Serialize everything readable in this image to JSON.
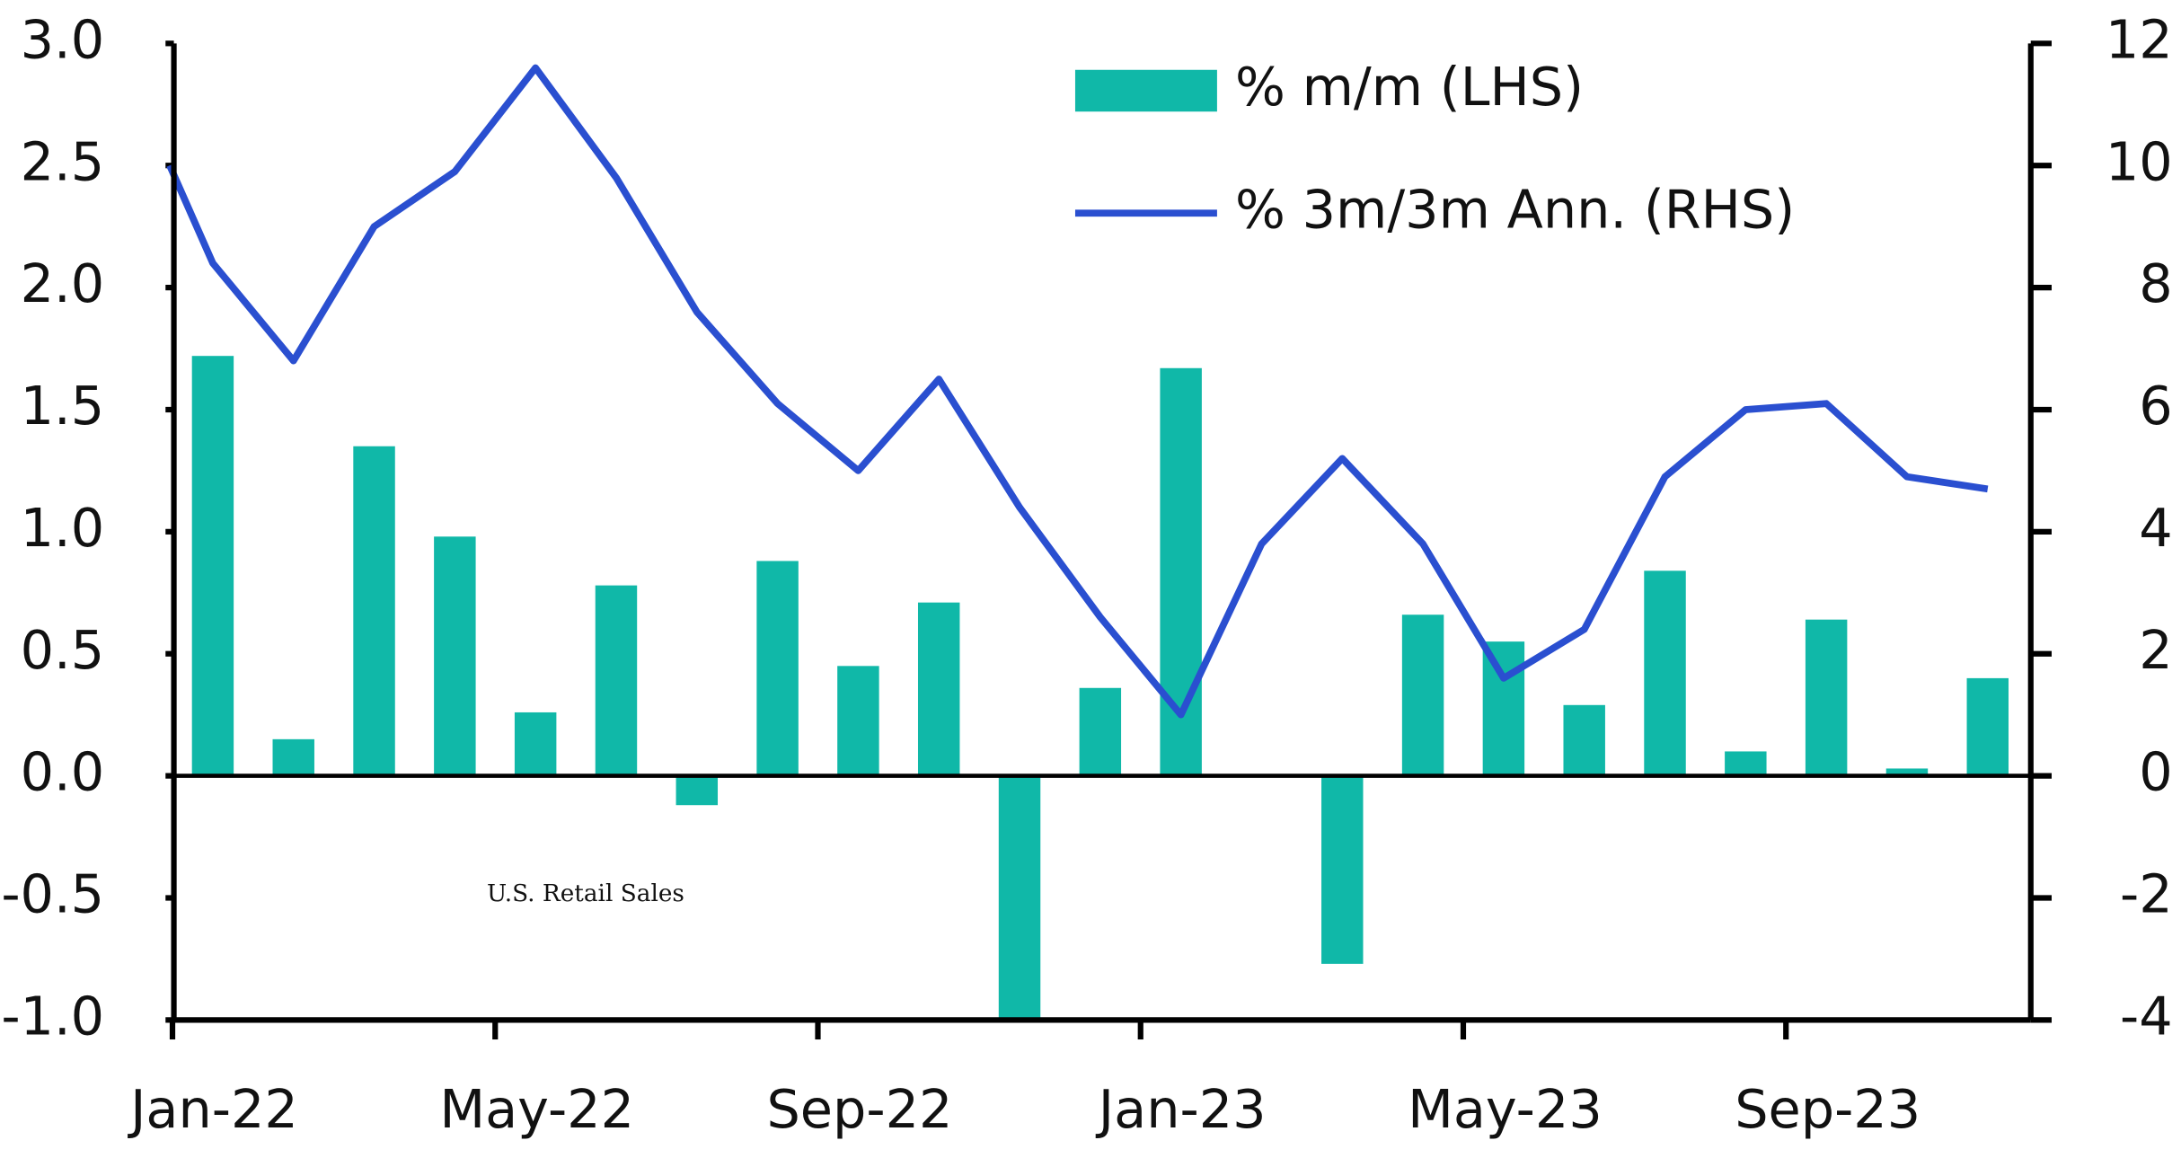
{
  "chart_data": {
    "type": "bar-line",
    "title": "U.S. Retail Sales",
    "categories": [
      null,
      "Jan-22",
      null,
      null,
      null,
      "May-22",
      null,
      null,
      null,
      "Sep-22",
      null,
      null,
      null,
      "Jan-23",
      null,
      null,
      null,
      "May-23",
      null,
      null,
      null,
      "Sep-23",
      null,
      null
    ],
    "series": [
      {
        "name": "% m/m (LHS)",
        "type": "bar",
        "color": "#10b8a8",
        "axis": "y",
        "values": [
          null,
          1.72,
          0.15,
          1.35,
          0.98,
          0.26,
          0.78,
          -0.12,
          0.88,
          0.45,
          0.71,
          -1.0,
          0.36,
          1.67,
          0,
          -0.77,
          0.66,
          0.55,
          0.29,
          0.84,
          0.1,
          0.64,
          0.03,
          0.4
        ]
      },
      {
        "name": "% 3m/3m Ann. (RHS)",
        "type": "line",
        "color": "#2a4fd0",
        "axis": "y2",
        "values": [
          10,
          8.4,
          6.8,
          9,
          9.9,
          11.6,
          9.8,
          7.6,
          6.1,
          5,
          6.5,
          4.4,
          2.6,
          1.0,
          3.8,
          5.2,
          3.8,
          1.6,
          2.4,
          4.9,
          6,
          6.1,
          4.9,
          4.7
        ]
      }
    ],
    "ylim": [
      -1,
      3
    ],
    "yticks": [
      {
        "value": -1,
        "label": "-1.0"
      },
      {
        "value": -0.5,
        "label": "-0.5"
      },
      {
        "value": 0,
        "label": "0.0"
      },
      {
        "value": 0.5,
        "label": "0.5"
      },
      {
        "value": 1,
        "label": "1.0"
      },
      {
        "value": 1.5,
        "label": "1.5"
      },
      {
        "value": 2,
        "label": "2.0"
      },
      {
        "value": 2.5,
        "label": "2.5"
      },
      {
        "value": 3,
        "label": "3.0"
      }
    ],
    "y2lim": [
      -4,
      12
    ],
    "y2ticks": [
      -4,
      -2,
      0,
      2,
      4,
      6,
      8,
      10,
      12
    ],
    "legend": "top-right"
  }
}
